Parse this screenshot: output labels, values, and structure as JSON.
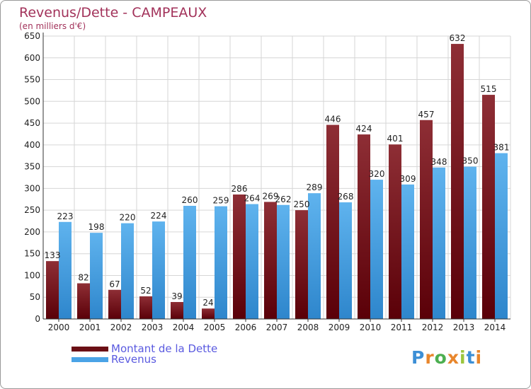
{
  "header": {
    "title": "Revenus/Dette - CAMPEAUX",
    "subtitle": "(en milliers d'€)"
  },
  "legend": {
    "items": [
      {
        "label": "Montant de la Dette",
        "color": "#6b0f15"
      },
      {
        "label": "Revenus",
        "color": "#4aa3e6"
      }
    ]
  },
  "logo": {
    "letters": [
      "P",
      "r",
      "o",
      "x",
      "i",
      "t",
      "i"
    ],
    "colors": [
      "#3c8fd6",
      "#e8862c",
      "#4caf50",
      "#e8862c",
      "#9bc53d",
      "#3c8fd6",
      "#e8862c"
    ]
  },
  "chart_data": {
    "type": "bar",
    "title": "Revenus/Dette - CAMPEAUX",
    "subtitle": "(en milliers d'€)",
    "categories": [
      "2000",
      "2001",
      "2002",
      "2003",
      "2004",
      "2005",
      "2006",
      "2007",
      "2008",
      "2009",
      "2010",
      "2011",
      "2012",
      "2013",
      "2014"
    ],
    "series": [
      {
        "name": "Montant de la Dette",
        "color": "#6b0f15",
        "values": [
          133,
          82,
          67,
          52,
          39,
          24,
          286,
          269,
          250,
          446,
          424,
          401,
          457,
          632,
          515
        ]
      },
      {
        "name": "Revenus",
        "color": "#4aa3e6",
        "values": [
          223,
          198,
          220,
          224,
          260,
          259,
          264,
          262,
          289,
          268,
          320,
          309,
          348,
          350,
          381
        ]
      }
    ],
    "ylim": [
      0,
      650
    ],
    "yticks": [
      0,
      50,
      100,
      150,
      200,
      250,
      300,
      350,
      400,
      450,
      500,
      550,
      600,
      650
    ],
    "grid": true,
    "legend_position": "bottom-left"
  }
}
